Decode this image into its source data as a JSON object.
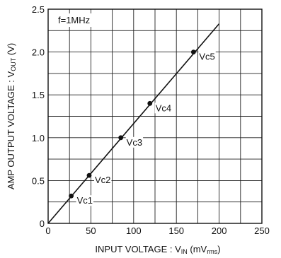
{
  "chart_data": {
    "type": "line",
    "title": "",
    "annotation": "f=1MHz",
    "xlabel": {
      "prefix": "INPUT VOLTAGE : V",
      "sub": "IN",
      "unit_open": " (mV",
      "unit_sub": "rms",
      "unit_close": ")"
    },
    "ylabel": {
      "prefix": "AMP OUTPUT VOLTAGE : V",
      "sub": "OUT",
      "unit": " (V)"
    },
    "xlim": [
      0,
      250
    ],
    "ylim": [
      0,
      2.5
    ],
    "xticks": [
      0,
      50,
      100,
      150,
      200,
      250
    ],
    "xtick_labels": [
      "0",
      "50",
      "100",
      "150",
      "200",
      "250"
    ],
    "yticks": [
      0,
      0.5,
      1.0,
      1.5,
      2.0,
      2.5
    ],
    "ytick_labels": [
      "0",
      "0.5",
      "1.0",
      "1.5",
      "2.0",
      "2.5"
    ],
    "grid": true,
    "x_minor_step": 25,
    "y_minor_step": 0.25,
    "series": [
      {
        "x": [
          0,
          200
        ],
        "y": [
          0,
          2.33
        ]
      }
    ],
    "points": [
      {
        "label": "Vc1",
        "x": 27,
        "y": 0.32
      },
      {
        "label": "Vc2",
        "x": 48,
        "y": 0.56
      },
      {
        "label": "Vc3",
        "x": 85,
        "y": 1.0
      },
      {
        "label": "Vc4",
        "x": 119,
        "y": 1.4
      },
      {
        "label": "Vc5",
        "x": 170,
        "y": 2.0
      }
    ]
  }
}
